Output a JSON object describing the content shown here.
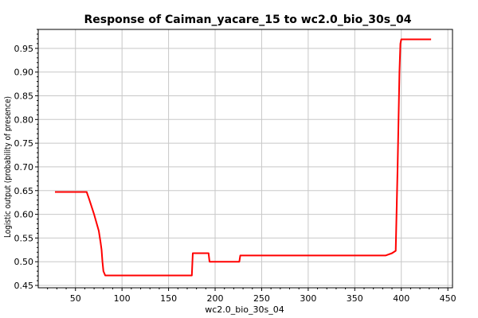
{
  "chart_data": {
    "type": "line",
    "title": "Response of Caiman_yacare_15 to wc2.0_bio_30s_04",
    "xlabel": "wc2.0_bio_30s_04",
    "ylabel": "Logistic output (probability of presence)",
    "xlim": [
      10,
      455
    ],
    "ylim": [
      0.445,
      0.99
    ],
    "xticks": [
      50,
      100,
      150,
      200,
      250,
      300,
      350,
      400,
      450
    ],
    "yticks": [
      0.45,
      0.5,
      0.55,
      0.6,
      0.65,
      0.7,
      0.75,
      0.8,
      0.85,
      0.9,
      0.95
    ],
    "ytick_labels": [
      "0.45",
      "0.50",
      "0.55",
      "0.60",
      "0.65",
      "0.70",
      "0.75",
      "0.80",
      "0.85",
      "0.90",
      "0.95"
    ],
    "grid": true,
    "series": [
      {
        "name": "response",
        "color": "#ff0000",
        "x": [
          28,
          62,
          65,
          70,
          75,
          77,
          78,
          79,
          80,
          82,
          83,
          175,
          176,
          193,
          194,
          226,
          227,
          383,
          390,
          394,
          396,
          398,
          399,
          400,
          432
        ],
        "y": [
          0.647,
          0.647,
          0.63,
          0.6,
          0.565,
          0.54,
          0.525,
          0.5,
          0.48,
          0.471,
          0.471,
          0.471,
          0.518,
          0.518,
          0.5,
          0.5,
          0.513,
          0.513,
          0.518,
          0.523,
          0.7,
          0.9,
          0.96,
          0.969,
          0.969
        ]
      }
    ]
  }
}
